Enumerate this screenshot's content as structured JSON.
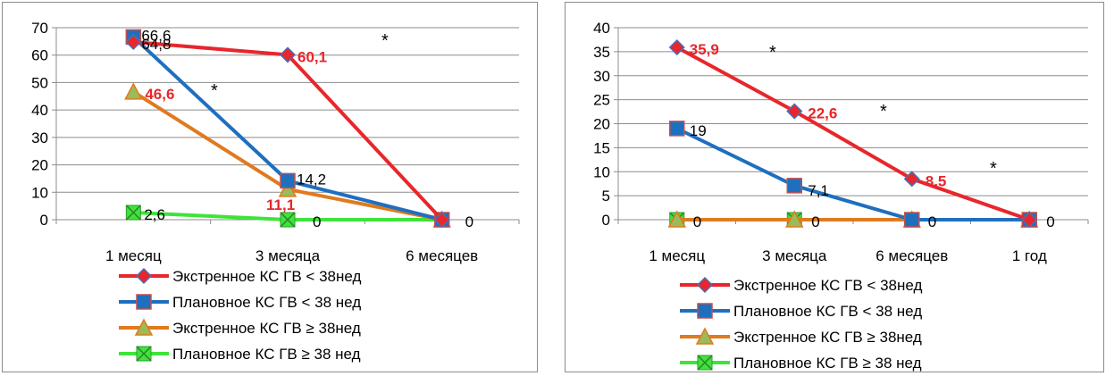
{
  "legend": [
    {
      "name": "Экстренное КС ГВ < 38нед",
      "color": "#e8262b",
      "marker": "diamond"
    },
    {
      "name": "Плановное КС ГВ < 38 нед",
      "color": "#1f6fbf",
      "marker": "square"
    },
    {
      "name": "Экстренное КС ГВ ≥ 38нед",
      "color": "#e07a1f",
      "marker": "triangle"
    },
    {
      "name": "Плановное КС ГВ ≥ 38 нед",
      "color": "#3fe33a",
      "marker": "x-box"
    }
  ],
  "chart_data": [
    {
      "type": "line",
      "categories": [
        "1 месяц",
        "3 месяца",
        "6 месяцев"
      ],
      "ylim": [
        0,
        70
      ],
      "yticks": [
        0,
        10,
        20,
        30,
        40,
        50,
        60,
        70
      ],
      "grid": true,
      "legend_position": "bottom",
      "series": [
        {
          "name": "Экстренное КС ГВ < 38нед",
          "values": [
            64.8,
            60.1,
            0
          ],
          "labels": [
            "64,8",
            "60,1",
            ""
          ]
        },
        {
          "name": "Плановное КС ГВ < 38 нед",
          "values": [
            66.6,
            14.2,
            0
          ],
          "labels": [
            "66,6",
            "14,2",
            ""
          ]
        },
        {
          "name": "Экстренное КС ГВ ≥ 38нед",
          "values": [
            46.6,
            11.1,
            0
          ],
          "labels": [
            "46,6",
            "11,1",
            ""
          ]
        },
        {
          "name": "Плановное КС ГВ ≥ 38 нед",
          "values": [
            2.6,
            0,
            0
          ],
          "labels": [
            "2,6",
            "0",
            "0"
          ]
        }
      ],
      "stars": [
        "*",
        "*"
      ]
    },
    {
      "type": "line",
      "categories": [
        "1 месяц",
        "3 месяца",
        "6 месяцев",
        "1 год"
      ],
      "ylim": [
        0,
        40
      ],
      "yticks": [
        0,
        5,
        10,
        15,
        20,
        25,
        30,
        35,
        40
      ],
      "grid": true,
      "legend_position": "bottom",
      "series": [
        {
          "name": "Экстренное КС ГВ < 38нед",
          "values": [
            35.9,
            22.6,
            8.5,
            0
          ],
          "labels": [
            "35,9",
            "22,6",
            "8,5",
            ""
          ]
        },
        {
          "name": "Плановное КС ГВ < 38 нед",
          "values": [
            19,
            7.1,
            0,
            0
          ],
          "labels": [
            "19",
            "7,1",
            "",
            ""
          ]
        },
        {
          "name": "Экстренное КС ГВ ≥ 38нед",
          "values": [
            0,
            0,
            0,
            0
          ],
          "labels": [
            "",
            "",
            "",
            ""
          ]
        },
        {
          "name": "Плановное КС ГВ ≥ 38 нед",
          "values": [
            0,
            0,
            0,
            0
          ],
          "labels": [
            "0",
            "0",
            "0",
            "0"
          ]
        }
      ],
      "stars": [
        "*",
        "*",
        "*"
      ]
    }
  ]
}
